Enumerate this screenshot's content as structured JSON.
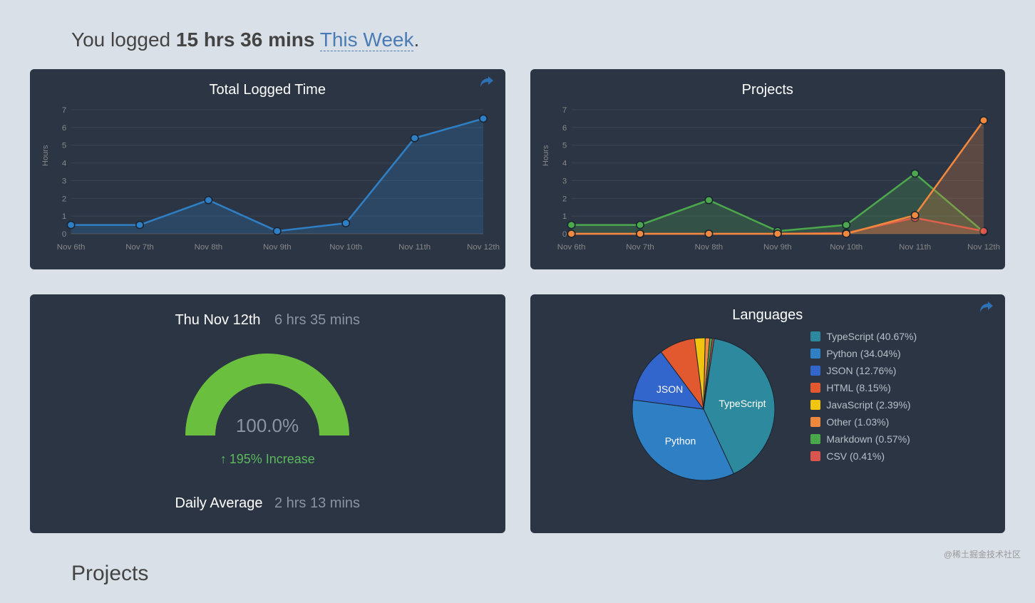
{
  "header": {
    "prefix": "You logged ",
    "bold_time": "15 hrs 36 mins",
    "link_text": "This Week",
    "suffix": "."
  },
  "colors": {
    "card_bg": "#2b3544",
    "page_bg": "#d9e0e7",
    "grid": "#3a4454",
    "axis_text": "#888",
    "link": "#4a7bb5"
  },
  "total_chart": {
    "title": "Total Logged Time",
    "ylabel": "Hours",
    "type": "area-line",
    "categories": [
      "Nov 6th",
      "Nov 7th",
      "Nov 8th",
      "Nov 9th",
      "Nov 10th",
      "Nov 11th",
      "Nov 12th"
    ],
    "values": [
      0.5,
      0.5,
      1.9,
      0.15,
      0.6,
      5.4,
      6.5
    ],
    "ylim": [
      0,
      7
    ],
    "ytick_step": 1,
    "line_color": "#2f7fc4",
    "fill_color": "rgba(47,127,196,0.25)",
    "marker_color": "#2f7fc4",
    "marker_stroke": "#0d4a7a",
    "has_share": true
  },
  "projects_chart": {
    "title": "Projects",
    "ylabel": "Hours",
    "type": "multi-area",
    "categories": [
      "Nov 6th",
      "Nov 7th",
      "Nov 8th",
      "Nov 9th",
      "Nov 10th",
      "Nov 11th",
      "Nov 12th"
    ],
    "ylim": [
      0,
      7
    ],
    "ytick_step": 1,
    "series": [
      {
        "name": "green",
        "color": "#4ca84c",
        "fill": "rgba(76,168,76,0.25)",
        "values": [
          0.5,
          0.5,
          1.9,
          0.15,
          0.5,
          3.4,
          0.1
        ]
      },
      {
        "name": "red",
        "color": "#d9534f",
        "fill": "rgba(217,83,79,0.25)",
        "values": [
          0.0,
          0.0,
          0.0,
          0.0,
          0.05,
          0.9,
          0.15
        ]
      },
      {
        "name": "orange",
        "color": "#f0883e",
        "fill": "rgba(240,136,62,0.25)",
        "values": [
          0.0,
          0.0,
          0.0,
          0.0,
          0.0,
          1.05,
          6.4
        ]
      }
    ],
    "has_share": false
  },
  "gauge": {
    "date": "Thu Nov 12th",
    "duration": "6 hrs 35 mins",
    "percent_text": "100.0%",
    "percent_value": 100.0,
    "increase_text": "195% Increase",
    "daily_avg_label": "Daily Average",
    "daily_avg_value": "2 hrs 13 mins",
    "arc_color": "#6bbf3f",
    "arc_width": 42
  },
  "languages": {
    "title": "Languages",
    "has_share": true,
    "type": "pie",
    "slices": [
      {
        "label": "TypeScript",
        "pct": 40.67,
        "color": "#2d8a9e",
        "show_name": true
      },
      {
        "label": "Python",
        "pct": 34.04,
        "color": "#2f7fc4",
        "show_name": true
      },
      {
        "label": "JSON",
        "pct": 12.76,
        "color": "#3366cc",
        "show_name": true
      },
      {
        "label": "HTML",
        "pct": 8.15,
        "color": "#e2592f",
        "show_name": false
      },
      {
        "label": "JavaScript",
        "pct": 2.39,
        "color": "#f1c40f",
        "show_name": false
      },
      {
        "label": "Other",
        "pct": 1.03,
        "color": "#f0883e",
        "show_name": false
      },
      {
        "label": "Markdown",
        "pct": 0.57,
        "color": "#4ca84c",
        "show_name": false
      },
      {
        "label": "CSV",
        "pct": 0.41,
        "color": "#d9534f",
        "show_name": false
      }
    ]
  },
  "projects_heading": "Projects",
  "watermark": "@稀土掘金技术社区"
}
